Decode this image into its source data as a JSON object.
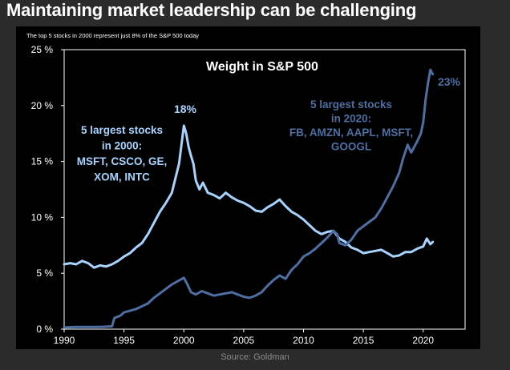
{
  "page": {
    "title": "Maintaining market leadership can be challenging",
    "source": "Source: Goldman"
  },
  "chart_data": {
    "type": "line",
    "title": "Weight in S&P 500",
    "subtitle": "The top 5 stocks in 2000 represent just 8% of the S&P 500 today",
    "xlabel": "",
    "ylabel": "",
    "xlim": [
      1990,
      2023.5
    ],
    "ylim": [
      0,
      25
    ],
    "x_ticks": [
      1990,
      1995,
      2000,
      2005,
      2010,
      2015,
      2020
    ],
    "y_ticks": [
      0,
      5,
      10,
      15,
      20,
      25
    ],
    "y_tick_labels": [
      "0 %",
      "5 %",
      "10 %",
      "15 %",
      "20 %",
      "25 %"
    ],
    "series": [
      {
        "name": "5 largest stocks in 2000: MSFT, CSCO, GE, XOM, INTC",
        "color": "#a6d4ff",
        "points": [
          [
            1990,
            5.8
          ],
          [
            1990.5,
            5.9
          ],
          [
            1991,
            5.8
          ],
          [
            1991.5,
            6.1
          ],
          [
            1992,
            5.9
          ],
          [
            1992.5,
            5.5
          ],
          [
            1993,
            5.7
          ],
          [
            1993.5,
            5.6
          ],
          [
            1994,
            5.8
          ],
          [
            1994.5,
            6.1
          ],
          [
            1995,
            6.5
          ],
          [
            1995.5,
            6.8
          ],
          [
            1996,
            7.3
          ],
          [
            1996.5,
            7.7
          ],
          [
            1997,
            8.5
          ],
          [
            1997.5,
            9.5
          ],
          [
            1998,
            10.5
          ],
          [
            1998.5,
            11.3
          ],
          [
            1999,
            12.2
          ],
          [
            1999.3,
            13.5
          ],
          [
            1999.6,
            14.8
          ],
          [
            1999.8,
            16.5
          ],
          [
            2000.0,
            18.2
          ],
          [
            2000.2,
            17.5
          ],
          [
            2000.4,
            16.3
          ],
          [
            2000.6,
            15.5
          ],
          [
            2000.8,
            14.8
          ],
          [
            2001.0,
            13.3
          ],
          [
            2001.3,
            12.5
          ],
          [
            2001.6,
            13.1
          ],
          [
            2002,
            12.2
          ],
          [
            2002.5,
            12.0
          ],
          [
            2003,
            11.7
          ],
          [
            2003.5,
            12.2
          ],
          [
            2004,
            11.8
          ],
          [
            2004.5,
            11.5
          ],
          [
            2005,
            11.3
          ],
          [
            2005.5,
            11.0
          ],
          [
            2006,
            10.6
          ],
          [
            2006.5,
            10.5
          ],
          [
            2007,
            10.9
          ],
          [
            2007.5,
            11.2
          ],
          [
            2008,
            11.6
          ],
          [
            2008.5,
            11.0
          ],
          [
            2009,
            10.5
          ],
          [
            2009.5,
            10.2
          ],
          [
            2010,
            9.8
          ],
          [
            2010.5,
            9.3
          ],
          [
            2011,
            8.8
          ],
          [
            2011.5,
            8.5
          ],
          [
            2012,
            8.7
          ],
          [
            2012.5,
            8.8
          ],
          [
            2013,
            8.1
          ],
          [
            2013.5,
            7.8
          ],
          [
            2014,
            7.3
          ],
          [
            2014.5,
            7.1
          ],
          [
            2015,
            6.8
          ],
          [
            2015.5,
            6.9
          ],
          [
            2016,
            7.0
          ],
          [
            2016.5,
            7.1
          ],
          [
            2017,
            6.8
          ],
          [
            2017.5,
            6.5
          ],
          [
            2018,
            6.6
          ],
          [
            2018.5,
            6.9
          ],
          [
            2019,
            6.9
          ],
          [
            2019.5,
            7.2
          ],
          [
            2020,
            7.4
          ],
          [
            2020.3,
            8.1
          ],
          [
            2020.6,
            7.6
          ],
          [
            2020.8,
            7.8
          ]
        ]
      },
      {
        "name": "5 largest stocks in 2020: FB, AMZN, AAPL, MSFT, GOOGL",
        "color": "#4d6fa3",
        "points": [
          [
            1990,
            0.15
          ],
          [
            1991,
            0.2
          ],
          [
            1992,
            0.2
          ],
          [
            1993,
            0.2
          ],
          [
            1994,
            0.25
          ],
          [
            1994.2,
            1.0
          ],
          [
            1994.7,
            1.2
          ],
          [
            1995,
            1.5
          ],
          [
            1996,
            1.8
          ],
          [
            1997,
            2.3
          ],
          [
            1997.5,
            2.8
          ],
          [
            1998,
            3.2
          ],
          [
            1999,
            4.0
          ],
          [
            1999.5,
            4.3
          ],
          [
            2000,
            4.6
          ],
          [
            2000.3,
            4.0
          ],
          [
            2000.6,
            3.3
          ],
          [
            2001,
            3.1
          ],
          [
            2001.5,
            3.4
          ],
          [
            2002,
            3.2
          ],
          [
            2002.5,
            3.0
          ],
          [
            2003,
            3.1
          ],
          [
            2003.5,
            3.2
          ],
          [
            2004,
            3.3
          ],
          [
            2004.5,
            3.1
          ],
          [
            2005,
            2.9
          ],
          [
            2005.5,
            2.8
          ],
          [
            2006,
            3.0
          ],
          [
            2006.5,
            3.3
          ],
          [
            2007,
            3.9
          ],
          [
            2007.5,
            4.4
          ],
          [
            2008,
            4.8
          ],
          [
            2008.5,
            4.5
          ],
          [
            2009,
            5.3
          ],
          [
            2009.5,
            5.8
          ],
          [
            2010,
            6.5
          ],
          [
            2010.5,
            6.8
          ],
          [
            2011,
            7.2
          ],
          [
            2011.5,
            7.7
          ],
          [
            2012,
            8.2
          ],
          [
            2012.5,
            8.8
          ],
          [
            2012.8,
            8.5
          ],
          [
            2013,
            7.7
          ],
          [
            2013.5,
            7.5
          ],
          [
            2014,
            8.0
          ],
          [
            2014.5,
            8.8
          ],
          [
            2015,
            9.2
          ],
          [
            2015.5,
            9.6
          ],
          [
            2016,
            10.0
          ],
          [
            2016.5,
            10.8
          ],
          [
            2017,
            11.8
          ],
          [
            2017.5,
            12.8
          ],
          [
            2018,
            14.0
          ],
          [
            2018.3,
            15.2
          ],
          [
            2018.7,
            16.5
          ],
          [
            2019,
            15.8
          ],
          [
            2019.5,
            16.8
          ],
          [
            2019.8,
            17.5
          ],
          [
            2020,
            18.5
          ],
          [
            2020.2,
            20.5
          ],
          [
            2020.4,
            22.0
          ],
          [
            2020.6,
            23.2
          ],
          [
            2020.8,
            22.8
          ]
        ]
      }
    ],
    "annotations": {
      "series1_label": [
        "5 largest stocks",
        "in 2000:",
        "MSFT, CSCO, GE,",
        "XOM, INTC"
      ],
      "series1_peak": "18%",
      "series2_label": [
        "5 largest stocks",
        "in 2020:",
        "FB, AMZN, AAPL, MSFT,",
        "GOOGL"
      ],
      "series2_end": "23%"
    }
  }
}
